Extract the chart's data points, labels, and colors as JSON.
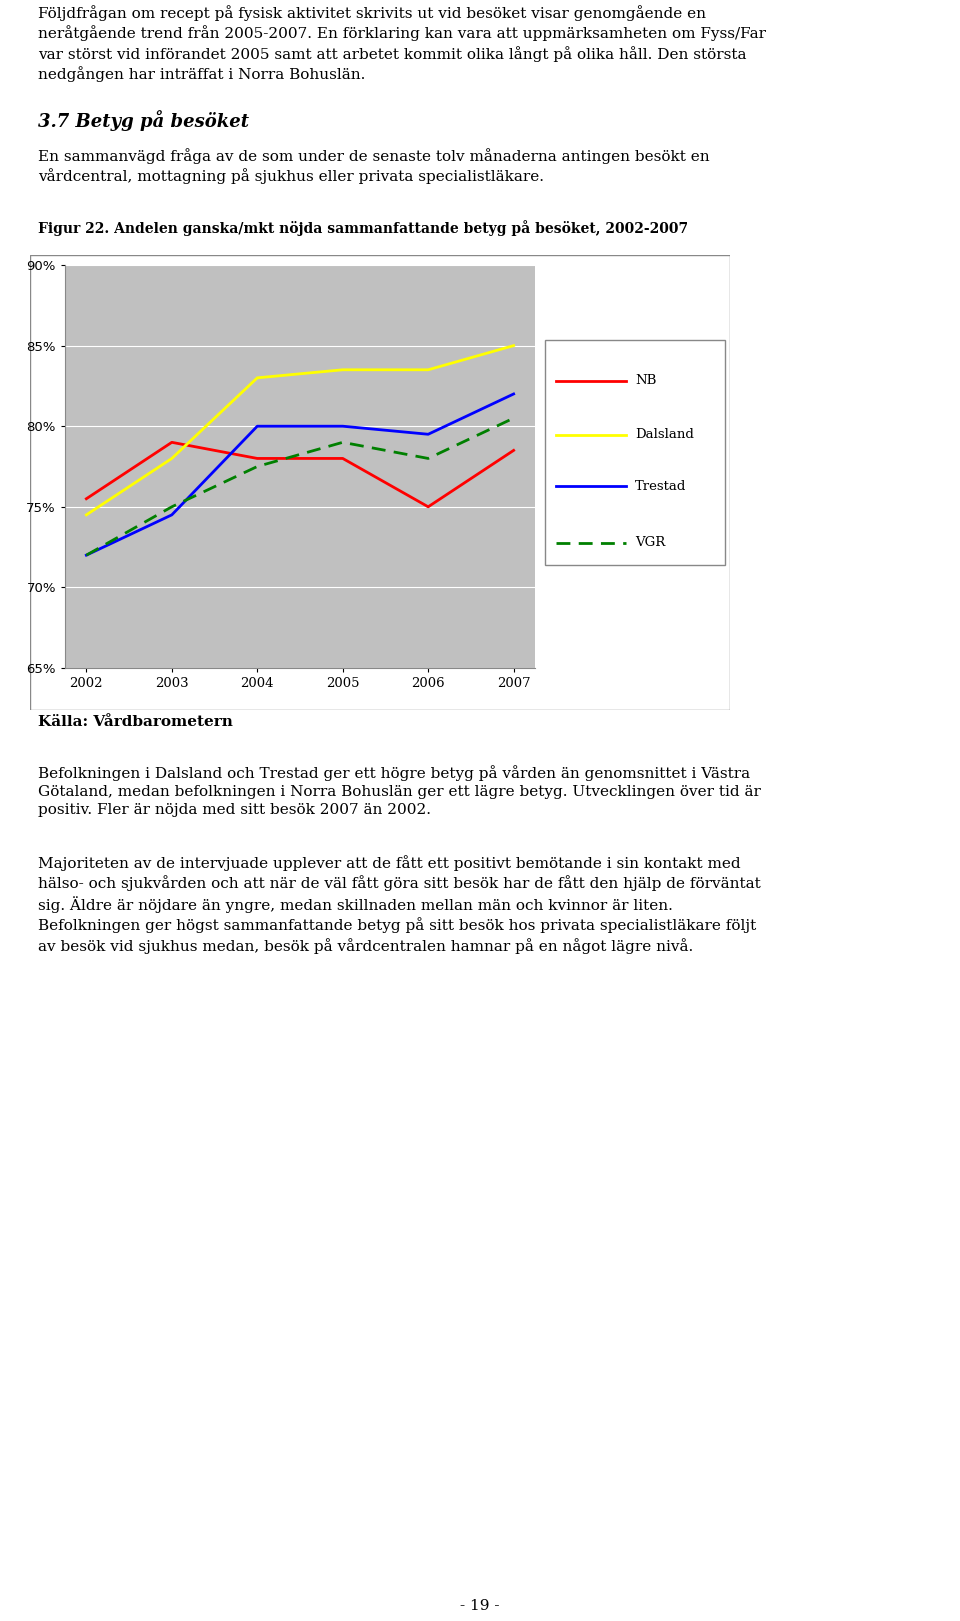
{
  "years": [
    2002,
    2003,
    2004,
    2005,
    2006,
    2007
  ],
  "NB": [
    75.5,
    79.0,
    78.0,
    78.0,
    75.0,
    78.5
  ],
  "Dalsland": [
    74.5,
    78.0,
    83.0,
    83.5,
    83.5,
    85.0
  ],
  "Trestad": [
    72.0,
    74.5,
    80.0,
    80.0,
    79.5,
    82.0
  ],
  "VGR": [
    72.0,
    75.0,
    77.5,
    79.0,
    78.0,
    80.5
  ],
  "NB_color": "#FF0000",
  "Dalsland_color": "#FFFF00",
  "Trestad_color": "#0000FF",
  "VGR_color": "#008000",
  "chart_bg": "#C0C0C0",
  "ylim": [
    65,
    90
  ],
  "yticks": [
    65,
    70,
    75,
    80,
    85,
    90
  ],
  "fig_width": 9.6,
  "fig_height": 16.21,
  "figure_label": "Figur 22. Andelen ganska/mkt nöjda sammanfattande betyg på besöket, 2002-2007",
  "source_text": "Källa: Vårdbarometern",
  "section_title": "3.7 Betyg på besöket",
  "top_para": "Följdfrågan om recept på fysisk aktivitet skrivits ut vid besöket visar genomgående en\nneråtgående trend från 2005-2007. En förklaring kan vara att uppmärksamheten om Fyss/Far\nvar störst vid införandet 2005 samt att arbetet kommit olika långt på olika håll. Den största\nnedgången har inträffat i Norra Bohuslän.",
  "section_sub": "En sammanvägd fråga av de som under de senaste tolv månaderna antingen besökt en\nvårdcentral, mottagning på sjukhus eller privata specialistläkare.",
  "bottom_para1": "Befolkningen i Dalsland och Trestad ger ett högre betyg på vården än genomsnittet i Västra\nGötaland, medan befolkningen i Norra Bohuslän ger ett lägre betyg. Utvecklingen över tid är\npositiv. Fler är nöjda med sitt besök 2007 än 2002.",
  "bottom_para2": "Majoriteten av de intervjuade upplever att de fått ett positivt bemötande i sin kontakt med\nhälso- och sjukvården och att när de väl fått göra sitt besök har de fått den hjälp de förväntat\nsig. Äldre är nöjdare än yngre, medan skillnaden mellan män och kvinnor är liten.\nBefolkningen ger högst sammanfattande betyg på sitt besök hos privata specialistläkare följt\nav besök vid sjukhus medan, besök på vårdcentralen hamnar på en något lägre nivå.",
  "page_num": "- 19 -",
  "legend_items": [
    "NB",
    "Dalsland",
    "Trestad",
    "VGR"
  ],
  "legend_styles": [
    "solid",
    "solid",
    "solid",
    "dashed"
  ],
  "legend_colors": [
    "#FF0000",
    "#FFFF00",
    "#0000FF",
    "#008000"
  ],
  "text_fontsize": 11,
  "label_fontsize": 10,
  "section_fontsize": 13,
  "figlabel_fontsize": 10
}
